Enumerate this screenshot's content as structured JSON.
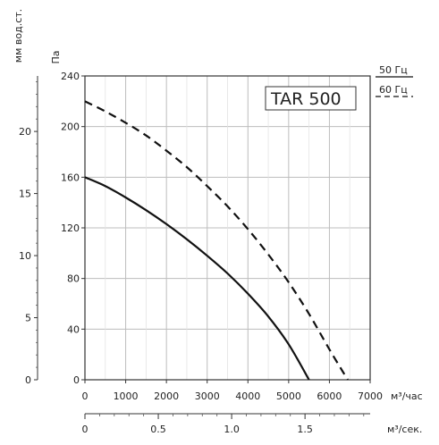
{
  "chart_data": {
    "type": "line",
    "title": "TAR 500",
    "x_primary": {
      "unit_label": "м³/час",
      "range": [
        0,
        7000
      ],
      "ticks": [
        0,
        1000,
        2000,
        3000,
        4000,
        5000,
        6000,
        7000
      ],
      "tick_labels": [
        "0",
        "1000",
        "2000",
        "3000",
        "4000",
        "5000",
        "6000",
        "7000"
      ]
    },
    "x_secondary": {
      "unit_label": "м³/сек.",
      "range": [
        0,
        1.944
      ],
      "ticks": [
        0,
        0.5,
        1.0,
        1.5
      ],
      "tick_labels": [
        "0",
        "0.5",
        "1.0",
        "1.5"
      ]
    },
    "y_primary": {
      "unit_label": "Па",
      "range": [
        0,
        240
      ],
      "ticks": [
        0,
        40,
        80,
        120,
        160,
        200,
        240
      ],
      "tick_labels": [
        "0",
        "40",
        "80",
        "120",
        "160",
        "200",
        "240"
      ]
    },
    "y_secondary": {
      "unit_label": "мм вод.ст.",
      "range": [
        0,
        24.47
      ],
      "ticks": [
        0,
        5,
        10,
        15,
        20
      ],
      "tick_labels": [
        "0",
        "5",
        "10",
        "15",
        "20"
      ]
    },
    "legend": {
      "placement": "top-right",
      "items": [
        {
          "label": "50 Гц",
          "style": "solid"
        },
        {
          "label": "60 Гц",
          "style": "dashed"
        }
      ]
    },
    "grid": true,
    "series": [
      {
        "name": "50 Гц",
        "style": "solid",
        "x": [
          0,
          500,
          1000,
          1500,
          2000,
          2500,
          3000,
          3500,
          4000,
          4500,
          5000,
          5500
        ],
        "y": [
          160,
          153,
          144,
          134,
          123,
          111,
          98,
          84,
          68,
          50,
          28,
          0
        ]
      },
      {
        "name": "60 Гц",
        "style": "dashed",
        "x": [
          0,
          500,
          1000,
          1500,
          2000,
          2500,
          3000,
          3500,
          4000,
          4500,
          5000,
          5500,
          6000,
          6450
        ],
        "y": [
          220,
          212,
          203,
          193,
          181,
          168,
          153,
          137,
          119,
          99,
          77,
          52,
          24,
          0
        ]
      }
    ],
    "colors": {
      "line": "#111111",
      "grid": "#bdbdbd",
      "axis": "#333333"
    }
  }
}
